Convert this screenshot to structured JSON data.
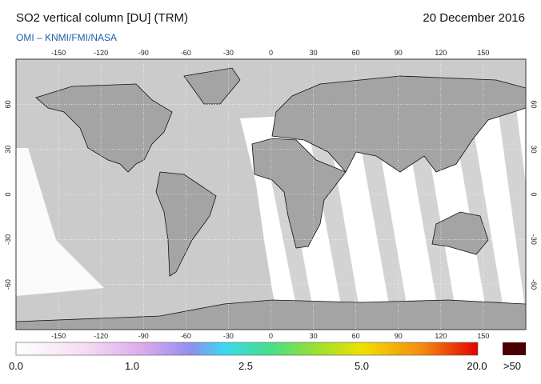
{
  "header": {
    "title": "SO2 vertical column [DU] (TRM)",
    "date": "20 December 2016",
    "credit": "OMI  –  KNMI/FMI/NASA"
  },
  "map": {
    "lon_ticks": [
      -150,
      -120,
      -90,
      -60,
      -30,
      0,
      30,
      60,
      90,
      120,
      150
    ],
    "lat_ticks": [
      60,
      30,
      0,
      -30,
      -60
    ]
  },
  "colorbar": {
    "labels": [
      "0.0",
      "1.0",
      "2.5",
      "5.0",
      "20.0"
    ],
    "overflow_label": ">50"
  }
}
